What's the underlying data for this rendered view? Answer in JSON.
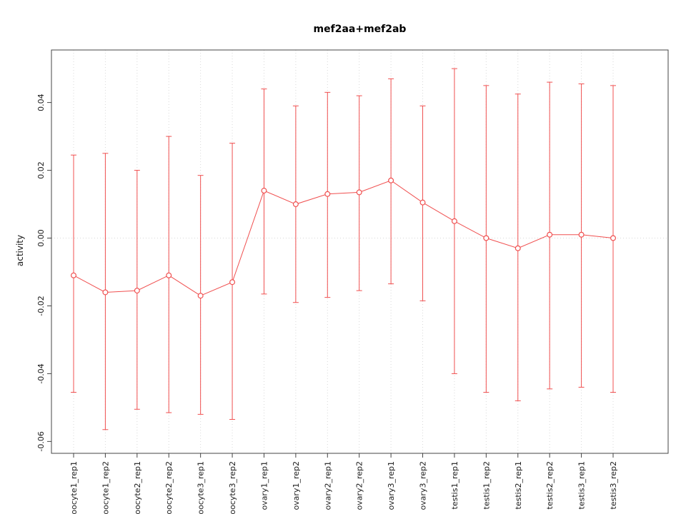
{
  "chart_data": {
    "type": "line",
    "marker": "open-circle",
    "title": "mef2aa+mef2ab",
    "ylabel": "activity",
    "xlabel": "",
    "legend": "none",
    "categories": [
      "oocyte1_rep1",
      "oocyte1_rep2",
      "oocyte2_rep1",
      "oocyte2_rep2",
      "oocyte3_rep1",
      "oocyte3_rep2",
      "ovary1_rep1",
      "ovary1_rep2",
      "ovary2_rep1",
      "ovary2_rep2",
      "ovary3_rep1",
      "ovary3_rep2",
      "testis1_rep1",
      "testis1_rep2",
      "testis2_rep1",
      "testis2_rep2",
      "testis3_rep1",
      "testis3_rep2"
    ],
    "values": [
      -0.011,
      -0.016,
      -0.0155,
      -0.011,
      -0.017,
      -0.013,
      0.014,
      0.01,
      0.013,
      0.0135,
      0.017,
      0.0105,
      0.005,
      0.0,
      -0.003,
      0.001,
      0.001,
      0.0
    ],
    "error_upper": [
      0.0245,
      0.025,
      0.02,
      0.03,
      0.0185,
      0.028,
      0.044,
      0.039,
      0.043,
      0.042,
      0.047,
      0.039,
      0.05,
      0.045,
      0.0425,
      0.046,
      0.0455,
      0.045
    ],
    "error_lower": [
      -0.0455,
      -0.0565,
      -0.0505,
      -0.0515,
      -0.052,
      -0.0535,
      -0.0165,
      -0.019,
      -0.0175,
      -0.0155,
      -0.0135,
      -0.0185,
      -0.04,
      -0.0455,
      -0.048,
      -0.0445,
      -0.044,
      -0.0455
    ],
    "yticks": [
      -0.06,
      -0.04,
      -0.02,
      0.0,
      0.02,
      0.04
    ],
    "ylim": [
      -0.0635,
      0.0555
    ],
    "grid": {
      "vertical_dotted_per_category": true,
      "horizontal_dotted_at_zero": true
    },
    "colors": {
      "series": "#f05050",
      "grid": "#d8d8d8",
      "axis": "#444444",
      "text": "#1a1a1a",
      "background": "#ffffff"
    }
  }
}
